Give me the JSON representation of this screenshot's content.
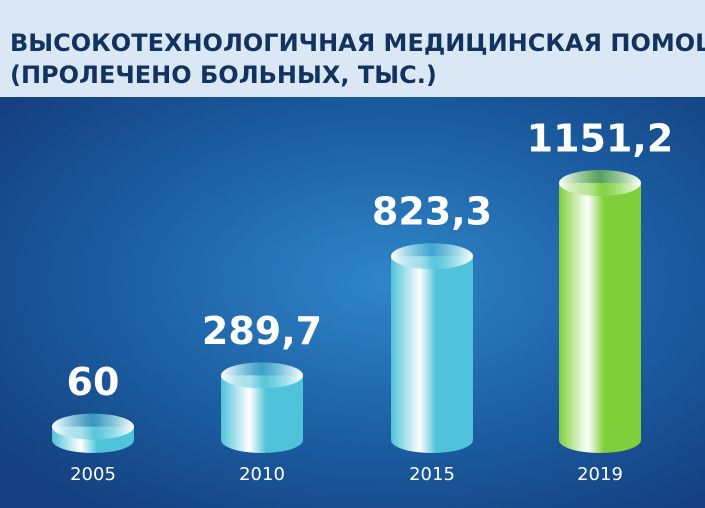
{
  "chart_data": {
    "type": "cylinder",
    "title": "ВЫСОКОТЕХНОЛОГИЧНАЯ МЕДИЦИНСКАЯ ПОМОЩЬ",
    "subtitle": "(ПРОЛЕЧЕНО БОЛЬНЫХ, ТЫС.)",
    "categories": [
      "2005",
      "2010",
      "2015",
      "2019"
    ],
    "values": [
      60,
      289.7,
      823.3,
      1151.2
    ],
    "value_labels": [
      "60",
      "289,7",
      "823,3",
      "1151,2"
    ],
    "colors": [
      "#4fc3d9",
      "#4fc3d9",
      "#4fc3d9",
      "#7fcf3a"
    ]
  }
}
